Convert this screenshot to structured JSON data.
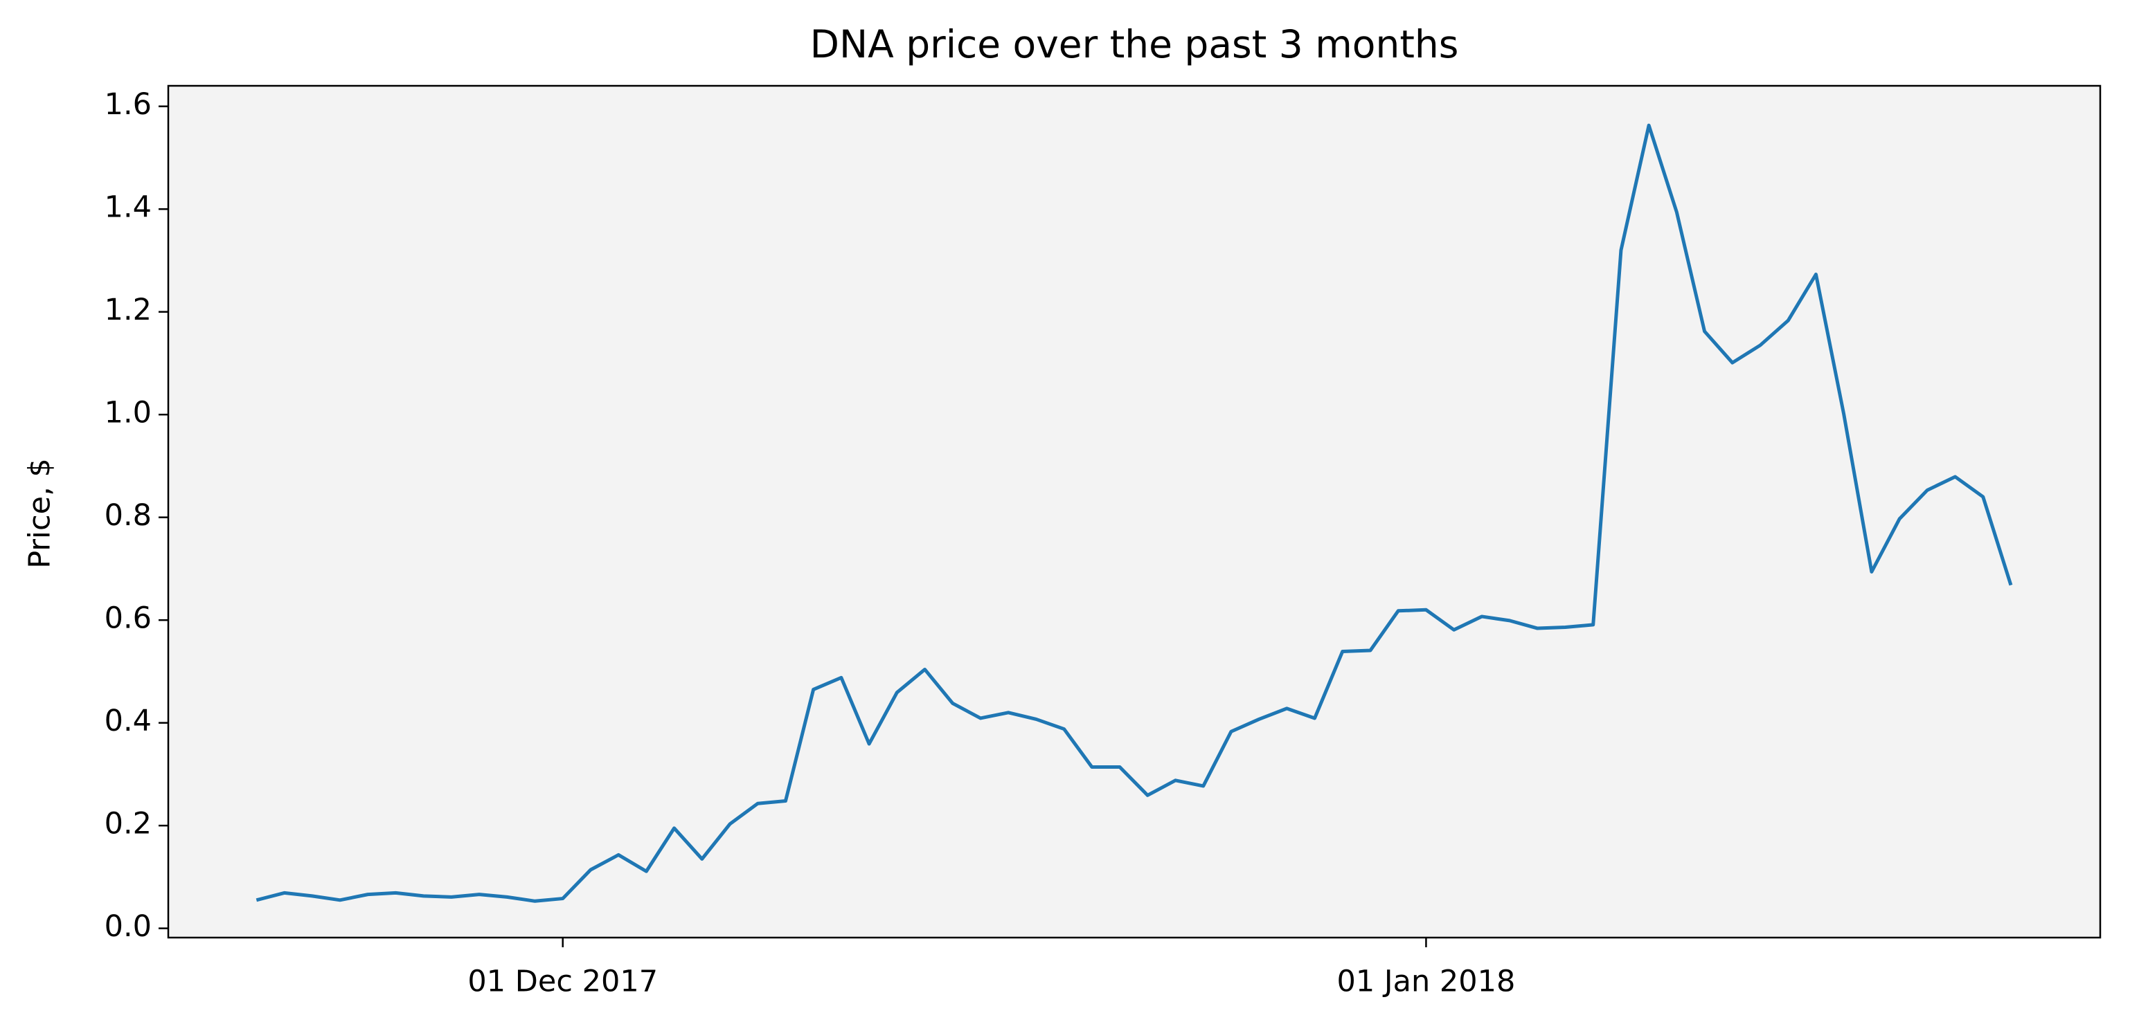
{
  "chart_data": {
    "type": "line",
    "title": "DNA price over the past 3 months",
    "ylabel": "Price, $",
    "x": [
      "2017-11-20",
      "2017-11-21",
      "2017-11-22",
      "2017-11-23",
      "2017-11-24",
      "2017-11-25",
      "2017-11-26",
      "2017-11-27",
      "2017-11-28",
      "2017-11-29",
      "2017-11-30",
      "2017-12-01",
      "2017-12-02",
      "2017-12-03",
      "2017-12-04",
      "2017-12-05",
      "2017-12-06",
      "2017-12-07",
      "2017-12-08",
      "2017-12-09",
      "2017-12-10",
      "2017-12-11",
      "2017-12-12",
      "2017-12-13",
      "2017-12-14",
      "2017-12-15",
      "2017-12-16",
      "2017-12-17",
      "2017-12-18",
      "2017-12-19",
      "2017-12-20",
      "2017-12-21",
      "2017-12-22",
      "2017-12-23",
      "2017-12-24",
      "2017-12-25",
      "2017-12-26",
      "2017-12-27",
      "2017-12-28",
      "2017-12-29",
      "2017-12-30",
      "2017-12-31",
      "2018-01-01",
      "2018-01-02",
      "2018-01-03",
      "2018-01-04",
      "2018-01-05",
      "2018-01-06",
      "2018-01-07",
      "2018-01-08",
      "2018-01-09",
      "2018-01-10",
      "2018-01-11",
      "2018-01-12",
      "2018-01-13",
      "2018-01-14",
      "2018-01-15",
      "2018-01-16",
      "2018-01-17",
      "2018-01-18",
      "2018-01-19",
      "2018-01-20",
      "2018-01-21",
      "2018-01-22"
    ],
    "values": [
      0.055,
      0.069,
      0.063,
      0.055,
      0.066,
      0.069,
      0.063,
      0.061,
      0.066,
      0.061,
      0.053,
      0.058,
      0.114,
      0.143,
      0.111,
      0.195,
      0.135,
      0.203,
      0.243,
      0.248,
      0.465,
      0.488,
      0.359,
      0.459,
      0.504,
      0.438,
      0.409,
      0.42,
      0.407,
      0.388,
      0.314,
      0.314,
      0.259,
      0.288,
      0.277,
      0.383,
      0.407,
      0.428,
      0.409,
      0.539,
      0.541,
      0.618,
      0.62,
      0.581,
      0.607,
      0.599,
      0.584,
      0.586,
      0.591,
      1.32,
      1.563,
      1.394,
      1.162,
      1.101,
      1.135,
      1.183,
      1.273,
      1.001,
      0.694,
      0.797,
      0.853,
      0.879,
      0.84,
      0.668
    ],
    "color": "#1f77b4",
    "xlim": [
      "2017-11-16T20:00:00Z",
      "2018-01-25T05:00:00Z"
    ],
    "xticks": [
      {
        "value": "2017-12-01",
        "label": "01 Dec 2017"
      },
      {
        "value": "2018-01-01",
        "label": "01 Jan 2018"
      }
    ],
    "ylim": [
      -0.018,
      1.64
    ],
    "yticks": [
      {
        "value": 0,
        "label": "0.0"
      },
      0.2,
      0.4,
      0.6,
      0.8,
      {
        "value": 1,
        "label": "1.0"
      },
      1.2,
      1.4,
      1.6
    ],
    "background": "#f3f3f3"
  }
}
